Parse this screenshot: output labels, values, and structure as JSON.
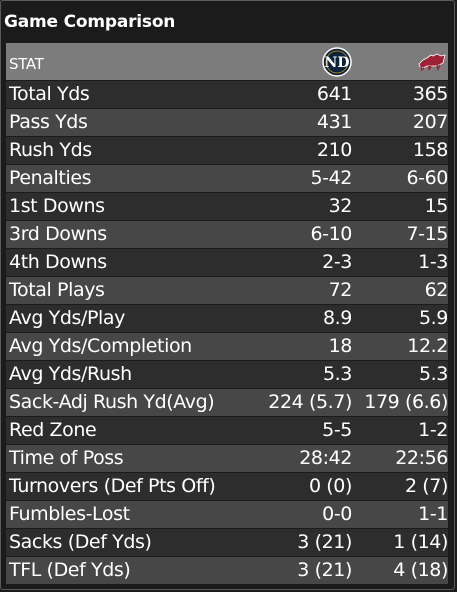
{
  "title": "Game Comparison",
  "header": {
    "stat_label": "STAT",
    "team1_icon": "notre-dame-logo",
    "team2_icon": "arkansas-razorback-logo"
  },
  "rows": [
    {
      "stat": "Total Yds",
      "team1": "641",
      "team2": "365"
    },
    {
      "stat": "Pass Yds",
      "team1": "431",
      "team2": "207"
    },
    {
      "stat": "Rush Yds",
      "team1": "210",
      "team2": "158"
    },
    {
      "stat": "Penalties",
      "team1": "5-42",
      "team2": "6-60"
    },
    {
      "stat": "1st Downs",
      "team1": "32",
      "team2": "15"
    },
    {
      "stat": "3rd Downs",
      "team1": "6-10",
      "team2": "7-15"
    },
    {
      "stat": "4th Downs",
      "team1": "2-3",
      "team2": "1-3"
    },
    {
      "stat": "Total Plays",
      "team1": "72",
      "team2": "62"
    },
    {
      "stat": "Avg Yds/Play",
      "team1": "8.9",
      "team2": "5.9"
    },
    {
      "stat": "Avg Yds/Completion",
      "team1": "18",
      "team2": "12.2"
    },
    {
      "stat": "Avg Yds/Rush",
      "team1": "5.3",
      "team2": "5.3"
    },
    {
      "stat": "Sack-Adj Rush Yd(Avg)",
      "team1": "224 (5.7)",
      "team2": "179 (6.6)"
    },
    {
      "stat": "Red Zone",
      "team1": "5-5",
      "team2": "1-2"
    },
    {
      "stat": "Time of Poss",
      "team1": "28:42",
      "team2": "22:56"
    },
    {
      "stat": "Turnovers (Def Pts Off)",
      "team1": "0 (0)",
      "team2": "2 (7)"
    },
    {
      "stat": "Fumbles-Lost",
      "team1": "0-0",
      "team2": "1-1"
    },
    {
      "stat": "Sacks (Def Yds)",
      "team1": "3 (21)",
      "team2": "1 (14)"
    },
    {
      "stat": "TFL (Def Yds)",
      "team1": "3 (21)",
      "team2": "4 (18)"
    }
  ],
  "colors": {
    "background": "#1b1b1b",
    "header_bg": "#7c7c7c",
    "row_dark": "#2d2d2d",
    "row_light": "#474747",
    "nd_navy": "#0c2340",
    "ark_red": "#9d2235"
  }
}
